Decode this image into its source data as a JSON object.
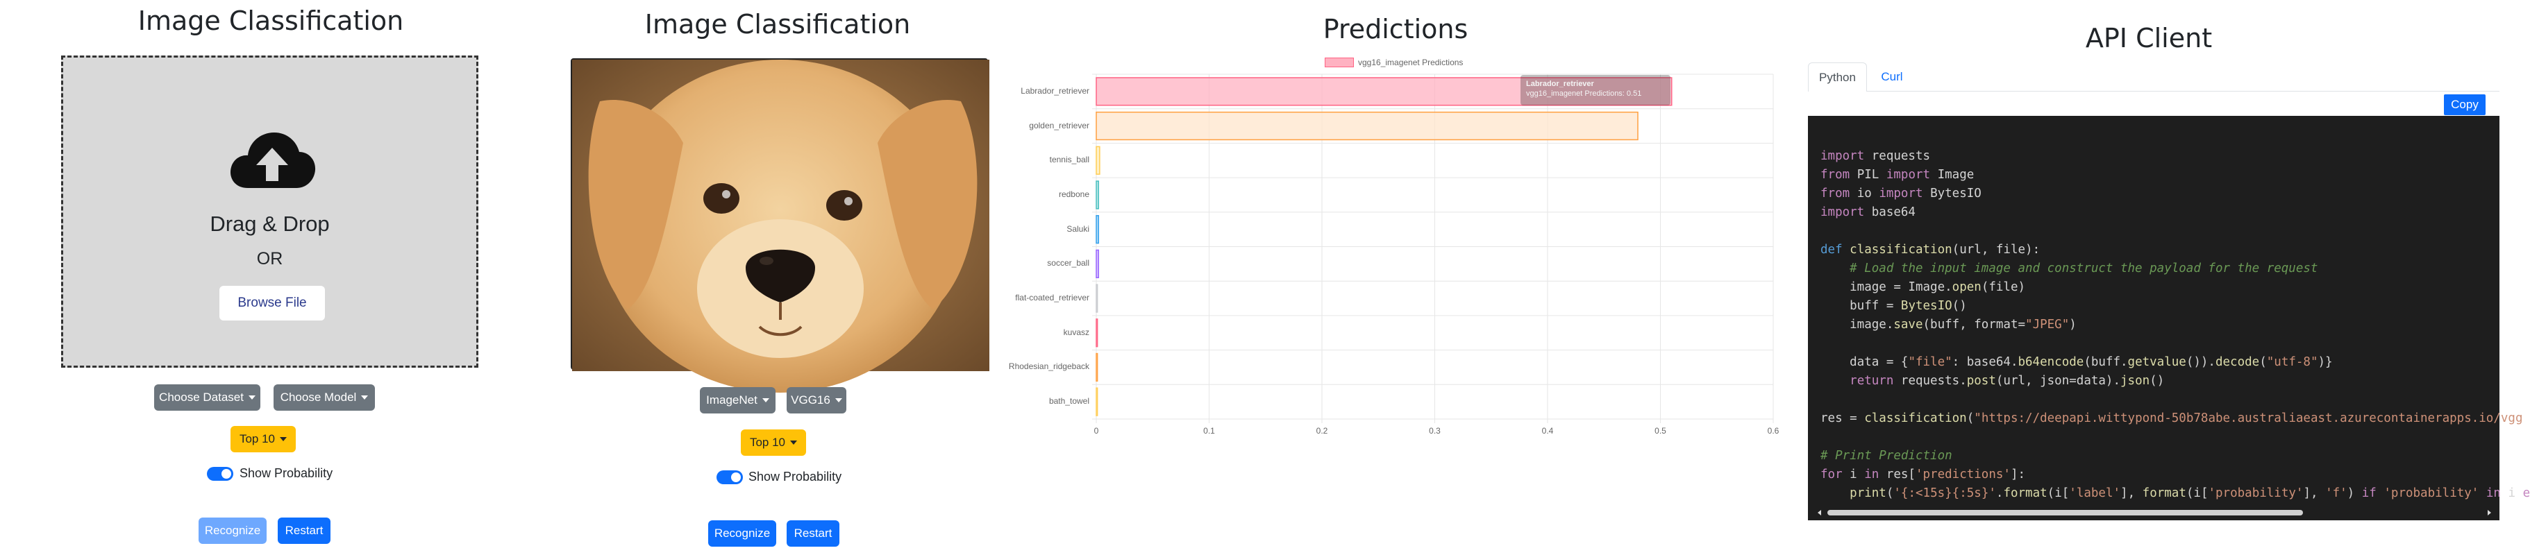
{
  "panel1": {
    "title": "Image Classification",
    "drop_title": "Drag & Drop",
    "or_text": "OR",
    "browse_label": "Browse File",
    "dataset_label": "Choose Dataset",
    "model_label": "Choose Model",
    "top_label": "Top 10",
    "toggle_label": "Show Probability",
    "recognize_label": "Recognize",
    "restart_label": "Restart"
  },
  "panel2": {
    "title": "Image Classification",
    "dataset_label": "ImageNet",
    "model_label": "VGG16",
    "top_label": "Top 10",
    "toggle_label": "Show Probability",
    "recognize_label": "Recognize",
    "restart_label": "Restart"
  },
  "panel3": {
    "title": "Predictions",
    "legend_label": "vgg16_imagenet Predictions",
    "tooltip_title": "Labrador_retriever",
    "tooltip_body": "vgg16_imagenet Predictions: 0.51"
  },
  "chart_data": {
    "type": "bar",
    "orientation": "horizontal",
    "series": [
      {
        "name": "vgg16_imagenet Predictions",
        "values": [
          0.51,
          0.48,
          0.003,
          0.002,
          0.002,
          0.002,
          0.001,
          0.001,
          0.001,
          0.001
        ]
      }
    ],
    "categories": [
      "Labrador_retriever",
      "golden_retriever",
      "tennis_ball",
      "redbone",
      "Saluki",
      "soccer_ball",
      "flat-coated_retriever",
      "kuvasz",
      "Rhodesian_ridgeback",
      "bath_towel"
    ],
    "xlim": [
      0,
      0.6
    ],
    "xticks": [
      "0",
      "0.1",
      "0.2",
      "0.3",
      "0.4",
      "0.5",
      "0.6"
    ],
    "grid": true,
    "legend_position": "top",
    "colors": {
      "fills": [
        "#ffb1c1",
        "#ffe6cc",
        "#ffecb3",
        "#a5dfdf",
        "#9ad0f5",
        "#ccb2ff",
        "#e4e5e7",
        "#ffb1c1",
        "#ffe6cc",
        "#ffecb3"
      ],
      "borders": [
        "#ff6384",
        "#ff9f40",
        "#ffcd56",
        "#4bc0c0",
        "#36a2eb",
        "#9966ff",
        "#c9cbcf",
        "#ff6384",
        "#ff9f40",
        "#ffcd56"
      ]
    }
  },
  "panel4": {
    "title": "API Client",
    "tab_python": "Python",
    "tab_curl": "Curl",
    "copy_label": "Copy",
    "url": "https://deepapi.wittypond-50b78abe.australiaeast.azurecontainerapps.io/vgg"
  },
  "colors": {
    "primary": "#0d6efd",
    "secondary": "#6c757d",
    "warning": "#ffc107",
    "dropzone": "#d9d9d9",
    "code_bg": "#1e1e1e"
  }
}
